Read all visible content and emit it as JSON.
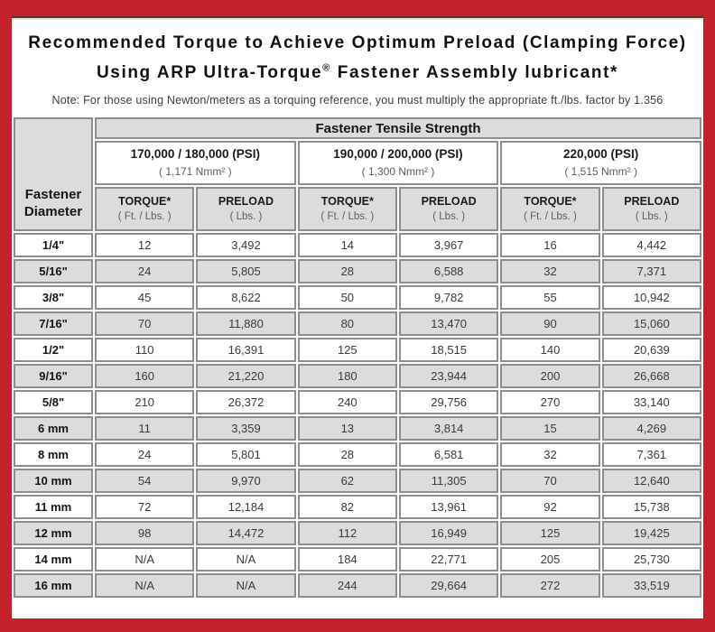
{
  "title": {
    "line1": "Recommended Torque to Achieve Optimum Preload (Clamping Force)",
    "line2_before_reg": "Using ARP Ultra-Torque",
    "registered_mark": "®",
    "line2_after_reg": " Fastener Assembly lubricant*"
  },
  "note": "Note: For those using Newton/meters as a torquing reference, you must multiply the appropriate ft./lbs. factor by 1.356",
  "colors": {
    "frame_red": "#c3222a",
    "cell_shade_gray": "#dcdcdc",
    "cell_border_gray": "#8d8d8d",
    "bevel_dark": "#473831",
    "text_dark": "#111111"
  },
  "table": {
    "corner_header_line1": "Fastener",
    "corner_header_line2": "Diameter",
    "tensile_strength_header": "Fastener Tensile Strength",
    "strength_groups": [
      {
        "psi": "170,000 / 180,000 (PSI)",
        "nmm": "( 1,171 Nmm² )"
      },
      {
        "psi": "190,000 / 200,000 (PSI)",
        "nmm": "( 1,300 Nmm² )"
      },
      {
        "psi": "220,000 (PSI)",
        "nmm": "( 1,515 Nmm² )"
      }
    ],
    "column_headers": [
      {
        "label": "TORQUE*",
        "sub": "( Ft. / Lbs. )"
      },
      {
        "label": "PRELOAD",
        "sub": "( Lbs. )"
      },
      {
        "label": "TORQUE*",
        "sub": "( Ft. / Lbs. )"
      },
      {
        "label": "PRELOAD",
        "sub": "( Lbs. )"
      },
      {
        "label": "TORQUE*",
        "sub": "( Ft. / Lbs. )"
      },
      {
        "label": "PRELOAD",
        "sub": "( Lbs. )"
      }
    ],
    "rows": [
      {
        "diameter": "1/4\"",
        "values": [
          "12",
          "3,492",
          "14",
          "3,967",
          "16",
          "4,442"
        ]
      },
      {
        "diameter": "5/16\"",
        "values": [
          "24",
          "5,805",
          "28",
          "6,588",
          "32",
          "7,371"
        ]
      },
      {
        "diameter": "3/8\"",
        "values": [
          "45",
          "8,622",
          "50",
          "9,782",
          "55",
          "10,942"
        ]
      },
      {
        "diameter": "7/16\"",
        "values": [
          "70",
          "11,880",
          "80",
          "13,470",
          "90",
          "15,060"
        ]
      },
      {
        "diameter": "1/2\"",
        "values": [
          "110",
          "16,391",
          "125",
          "18,515",
          "140",
          "20,639"
        ]
      },
      {
        "diameter": "9/16\"",
        "values": [
          "160",
          "21,220",
          "180",
          "23,944",
          "200",
          "26,668"
        ]
      },
      {
        "diameter": "5/8\"",
        "values": [
          "210",
          "26,372",
          "240",
          "29,756",
          "270",
          "33,140"
        ]
      },
      {
        "diameter": "6 mm",
        "values": [
          "11",
          "3,359",
          "13",
          "3,814",
          "15",
          "4,269"
        ]
      },
      {
        "diameter": "8 mm",
        "values": [
          "24",
          "5,801",
          "28",
          "6,581",
          "32",
          "7,361"
        ]
      },
      {
        "diameter": "10 mm",
        "values": [
          "54",
          "9,970",
          "62",
          "11,305",
          "70",
          "12,640"
        ]
      },
      {
        "diameter": "11 mm",
        "values": [
          "72",
          "12,184",
          "82",
          "13,961",
          "92",
          "15,738"
        ]
      },
      {
        "diameter": "12 mm",
        "values": [
          "98",
          "14,472",
          "112",
          "16,949",
          "125",
          "19,425"
        ]
      },
      {
        "diameter": "14 mm",
        "values": [
          "N/A",
          "N/A",
          "184",
          "22,771",
          "205",
          "25,730"
        ]
      },
      {
        "diameter": "16 mm",
        "values": [
          "N/A",
          "N/A",
          "244",
          "29,664",
          "272",
          "33,519"
        ]
      }
    ]
  }
}
